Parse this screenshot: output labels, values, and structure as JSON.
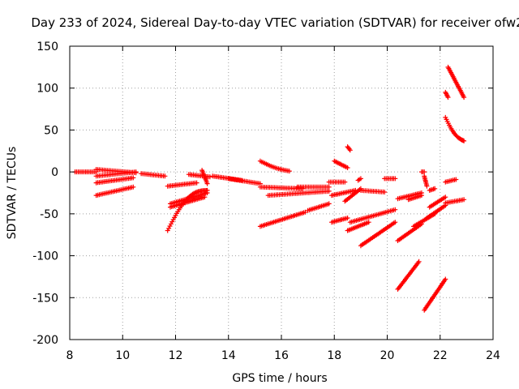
{
  "chart_data": {
    "type": "scatter",
    "title": "Day 233 of 2024, Sidereal Day-to-day VTEC variation (SDTVAR) for receiver ofw2",
    "xlabel": "GPS time / hours",
    "ylabel": "SDTVAR / TECUs",
    "xlim": [
      8,
      24
    ],
    "ylim": [
      -200,
      150
    ],
    "x_ticks": [
      8,
      10,
      12,
      14,
      16,
      18,
      20,
      22,
      24
    ],
    "x_tick_labels": [
      "8",
      "10",
      "12",
      "14",
      "16",
      "18",
      "20",
      "22",
      "24"
    ],
    "y_ticks": [
      -200,
      -150,
      -100,
      -50,
      0,
      50,
      100,
      150
    ],
    "y_tick_labels": [
      "-200",
      "-150",
      "-100",
      "-50",
      "0",
      "50",
      "100",
      "150"
    ],
    "grid": true,
    "marker": "plus",
    "series_color": "#ff0000",
    "tracks": [
      {
        "x1": 8.2,
        "y1": 0,
        "x2": 9.0,
        "y2": 0
      },
      {
        "x1": 9.0,
        "y1": 3,
        "x2": 10.5,
        "y2": -1
      },
      {
        "x1": 9.0,
        "y1": -5,
        "x2": 10.5,
        "y2": 0
      },
      {
        "x1": 9.0,
        "y1": -13,
        "x2": 10.4,
        "y2": -7
      },
      {
        "x1": 9.0,
        "y1": -28,
        "x2": 10.4,
        "y2": -18
      },
      {
        "x1": 10.7,
        "y1": -2,
        "x2": 11.6,
        "y2": -5
      },
      {
        "x1": 11.7,
        "y1": -17,
        "x2": 12.8,
        "y2": -13
      },
      {
        "x1": 11.7,
        "y1": -70,
        "x2": 13.2,
        "y2": -22,
        "curve": 0.3
      },
      {
        "x1": 11.8,
        "y1": -38,
        "x2": 13.2,
        "y2": -25
      },
      {
        "x1": 11.8,
        "y1": -42,
        "x2": 13.1,
        "y2": -30
      },
      {
        "x1": 12.5,
        "y1": -3,
        "x2": 13.3,
        "y2": -6
      },
      {
        "x1": 13.0,
        "y1": 2,
        "x2": 13.2,
        "y2": -14
      },
      {
        "x1": 13.4,
        "y1": -5,
        "x2": 14.5,
        "y2": -10
      },
      {
        "x1": 14.0,
        "y1": -8,
        "x2": 15.2,
        "y2": -14
      },
      {
        "x1": 15.2,
        "y1": 13,
        "x2": 16.3,
        "y2": 1,
        "curve": 0.15
      },
      {
        "x1": 15.2,
        "y1": -18,
        "x2": 16.8,
        "y2": -20
      },
      {
        "x1": 15.5,
        "y1": -28,
        "x2": 17.8,
        "y2": -23
      },
      {
        "x1": 15.2,
        "y1": -65,
        "x2": 16.9,
        "y2": -48
      },
      {
        "x1": 16.6,
        "y1": -18,
        "x2": 17.8,
        "y2": -18
      },
      {
        "x1": 17.0,
        "y1": -46,
        "x2": 17.8,
        "y2": -38
      },
      {
        "x1": 17.8,
        "y1": -12,
        "x2": 18.4,
        "y2": -12
      },
      {
        "x1": 17.9,
        "y1": -28,
        "x2": 18.8,
        "y2": -22
      },
      {
        "x1": 17.9,
        "y1": -60,
        "x2": 18.5,
        "y2": -55
      },
      {
        "x1": 18.0,
        "y1": 13,
        "x2": 18.5,
        "y2": 5
      },
      {
        "x1": 18.5,
        "y1": 30,
        "x2": 18.6,
        "y2": 26
      },
      {
        "x1": 18.4,
        "y1": -35,
        "x2": 19.0,
        "y2": -20
      },
      {
        "x1": 18.5,
        "y1": -70,
        "x2": 19.3,
        "y2": -60
      },
      {
        "x1": 18.6,
        "y1": -60,
        "x2": 20.3,
        "y2": -45
      },
      {
        "x1": 18.9,
        "y1": -10,
        "x2": 19.0,
        "y2": -8
      },
      {
        "x1": 19.0,
        "y1": -22,
        "x2": 19.9,
        "y2": -24
      },
      {
        "x1": 19.0,
        "y1": -88,
        "x2": 20.3,
        "y2": -60
      },
      {
        "x1": 19.9,
        "y1": -8,
        "x2": 20.3,
        "y2": -8
      },
      {
        "x1": 20.4,
        "y1": -32,
        "x2": 21.3,
        "y2": -25
      },
      {
        "x1": 20.4,
        "y1": -82,
        "x2": 21.3,
        "y2": -62
      },
      {
        "x1": 20.4,
        "y1": -140,
        "x2": 21.2,
        "y2": -107
      },
      {
        "x1": 20.8,
        "y1": -33,
        "x2": 21.3,
        "y2": -28
      },
      {
        "x1": 21.0,
        "y1": -65,
        "x2": 21.8,
        "y2": -50
      },
      {
        "x1": 21.3,
        "y1": 0,
        "x2": 21.4,
        "y2": 0
      },
      {
        "x1": 21.4,
        "y1": -165,
        "x2": 22.2,
        "y2": -128
      },
      {
        "x1": 21.4,
        "y1": -5,
        "x2": 21.5,
        "y2": -17
      },
      {
        "x1": 21.5,
        "y1": -55,
        "x2": 22.2,
        "y2": -40
      },
      {
        "x1": 21.6,
        "y1": -42,
        "x2": 22.2,
        "y2": -30
      },
      {
        "x1": 21.6,
        "y1": -22,
        "x2": 21.8,
        "y2": -20
      },
      {
        "x1": 22.2,
        "y1": -12,
        "x2": 22.6,
        "y2": -9
      },
      {
        "x1": 22.2,
        "y1": -37,
        "x2": 22.9,
        "y2": -33
      },
      {
        "x1": 22.2,
        "y1": 95,
        "x2": 22.3,
        "y2": 89
      },
      {
        "x1": 22.3,
        "y1": 125,
        "x2": 22.9,
        "y2": 89
      },
      {
        "x1": 22.2,
        "y1": 65,
        "x2": 22.9,
        "y2": 37,
        "curve": 0.2
      }
    ]
  }
}
